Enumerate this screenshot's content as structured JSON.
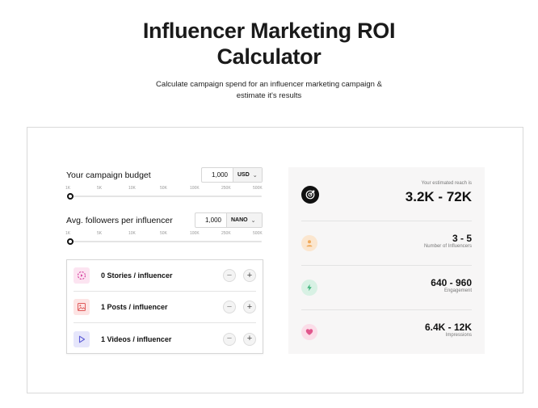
{
  "header": {
    "title_line1": "Influencer Marketing ROI",
    "title_line2": "Calculator",
    "subtitle": "Calculate campaign spend for an influencer marketing campaign & estimate it's results"
  },
  "budget": {
    "label": "Your campaign budget",
    "value": "1,000",
    "unit": "USD",
    "chevron": "⌄",
    "ticks": [
      "1K",
      "5K",
      "10K",
      "50K",
      "100K",
      "250K",
      "500K"
    ]
  },
  "followers": {
    "label": "Avg. followers per influencer",
    "value": "1,000",
    "unit": "NANO",
    "chevron": "⌄",
    "ticks": [
      "1K",
      "5K",
      "10K",
      "50K",
      "100K",
      "250K",
      "500K"
    ]
  },
  "content": {
    "items": [
      {
        "label": "0 Stories / influencer",
        "icon": "stories-icon",
        "minus": "−",
        "plus": "+"
      },
      {
        "label": "1 Posts / influencer",
        "icon": "image-icon",
        "minus": "−",
        "plus": "+"
      },
      {
        "label": "1 Videos / influencer",
        "icon": "play-icon",
        "minus": "−",
        "plus": "+"
      }
    ]
  },
  "results": {
    "reach_caption": "Your estimated reach is",
    "reach_value": "3.2K - 72K",
    "influencers_value": "3 - 5",
    "influencers_label": "Number of Influencers",
    "engagement_value": "640 - 960",
    "engagement_label": "Engagement",
    "impressions_value": "6.4K - 12K",
    "impressions_label": "Impressions"
  },
  "colors": {
    "stories_bg": "#fce4f1",
    "stories_fg": "#d6409f",
    "posts_bg": "#fde4e4",
    "posts_fg": "#e05a5a",
    "videos_bg": "#e6e6fb",
    "videos_fg": "#5b5bd6",
    "user_bg": "#fbe6cf",
    "user_fg": "#f0a95a",
    "bolt_bg": "#d8f1e4",
    "bolt_fg": "#3db37a",
    "heart_bg": "#fbdde8",
    "heart_fg": "#e0578c"
  }
}
